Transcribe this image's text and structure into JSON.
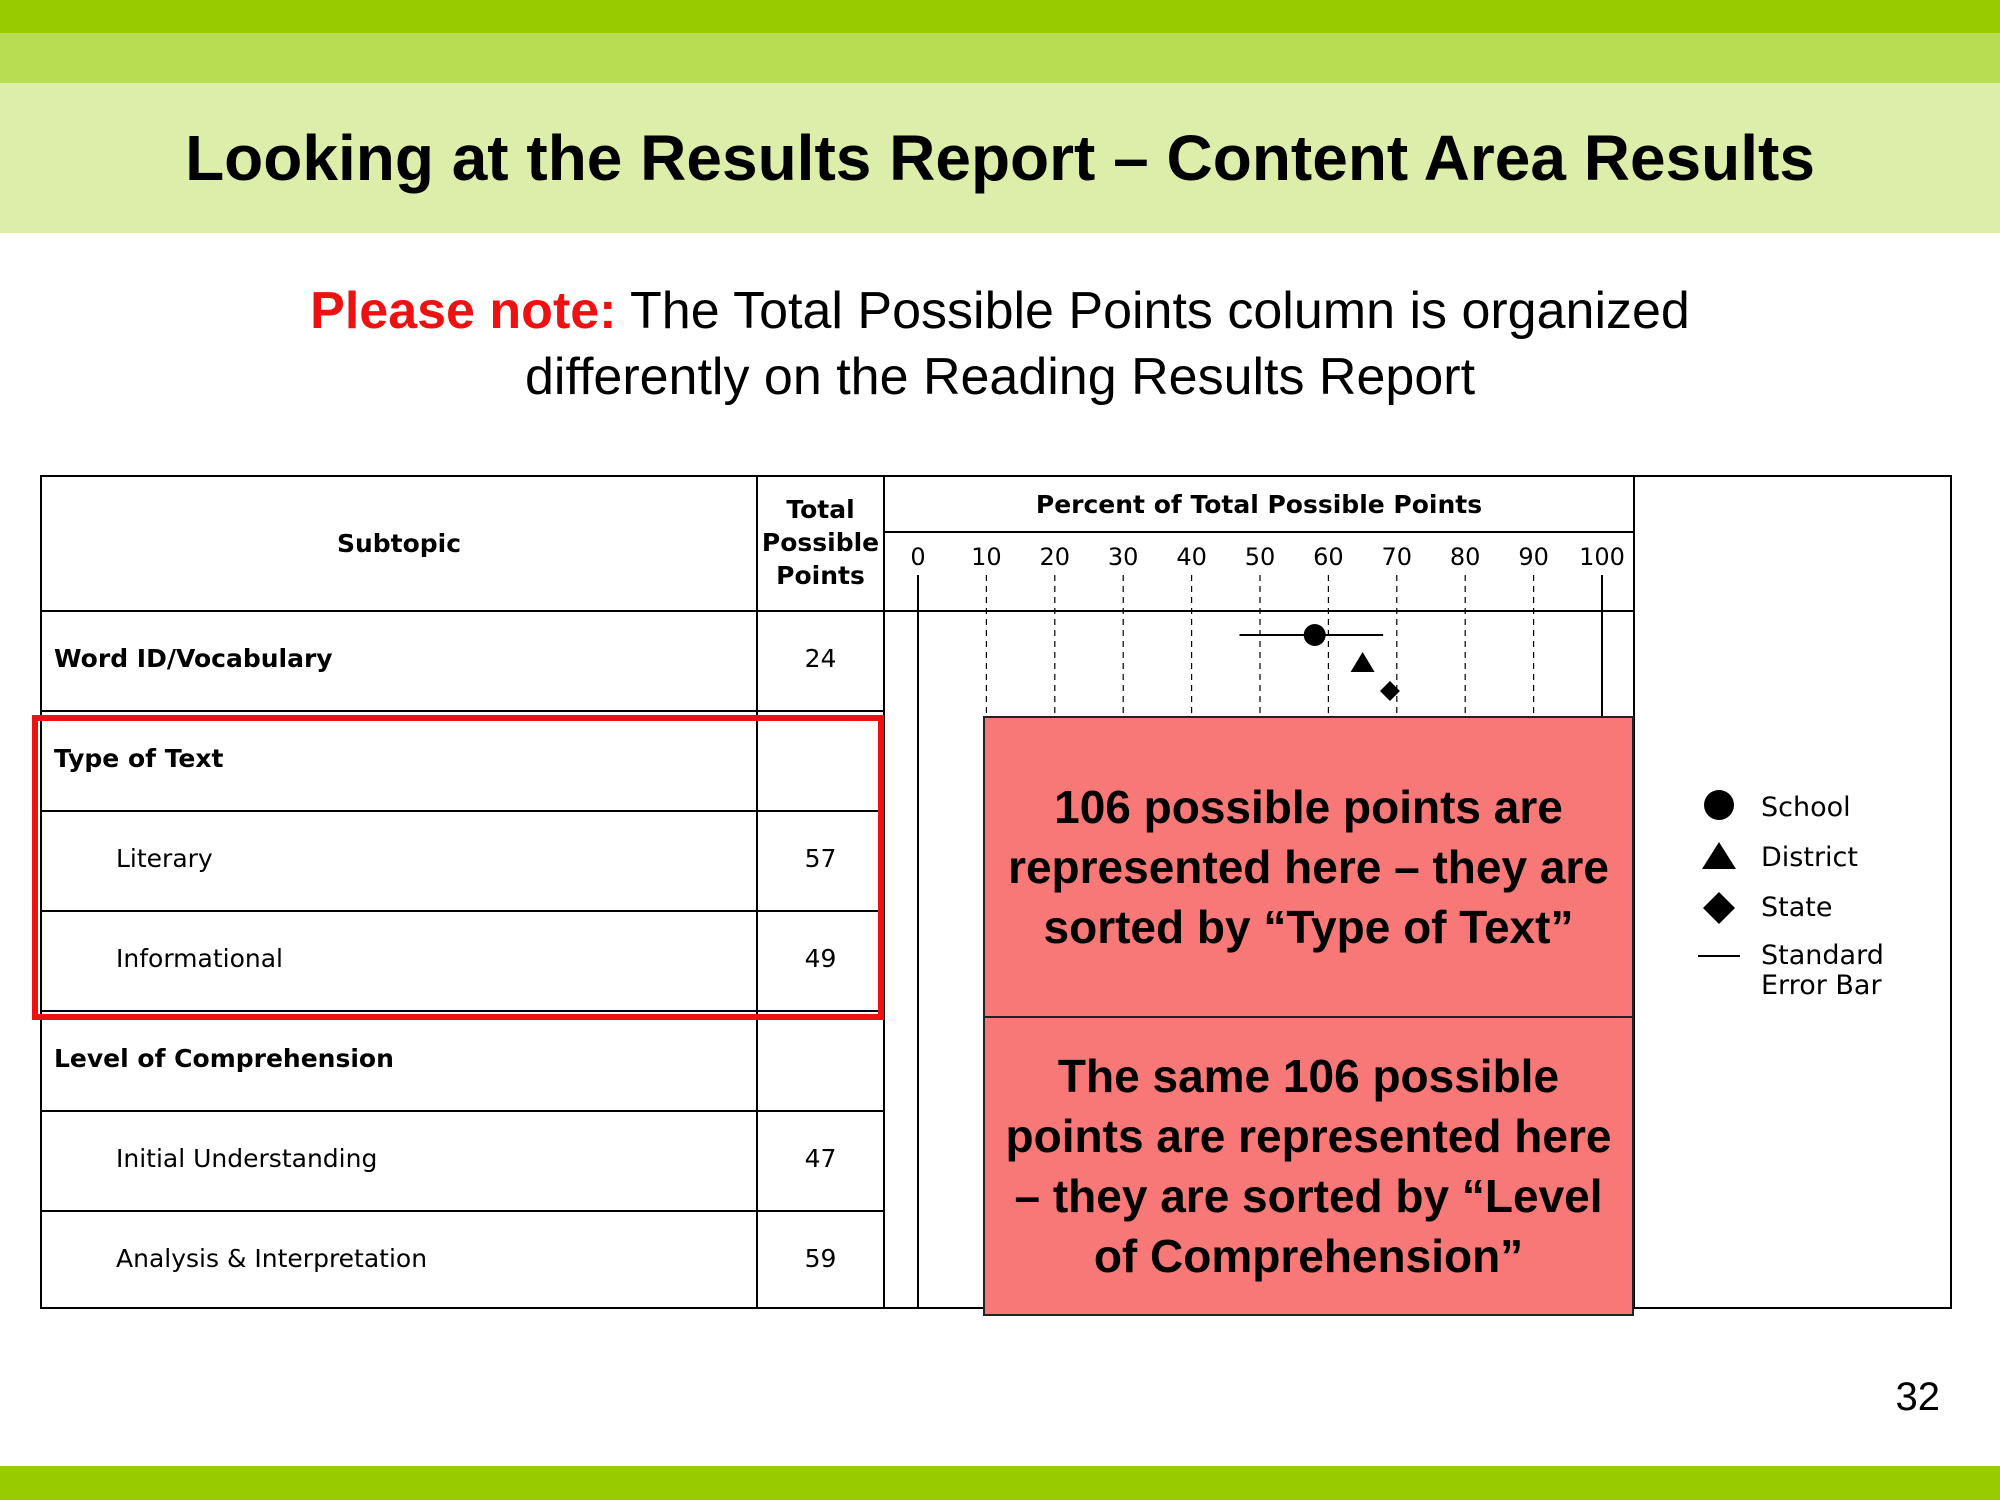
{
  "slide": {
    "title": "Looking at the Results Report – Content Area Results",
    "note_lead": "Please note:",
    "note_line1": " The Total Possible Points column is organized",
    "note_line2": "differently on the Reading Results Report",
    "page_number": "32"
  },
  "table": {
    "col_subtopic": "Subtopic",
    "col_points_1": "Total",
    "col_points_2": "Possible",
    "col_points_3": "Points",
    "col_percent": "Percent of Total Possible Points",
    "rows": [
      {
        "label": "Word ID/Vocabulary",
        "points": "24"
      },
      {
        "label": "Type of Text",
        "points": ""
      },
      {
        "label": "Literary",
        "points": "57"
      },
      {
        "label": "Informational",
        "points": "49"
      },
      {
        "label": "Level of Comprehension",
        "points": ""
      },
      {
        "label": "Initial Understanding",
        "points": "47"
      },
      {
        "label": "Analysis & Interpretation",
        "points": "59"
      }
    ]
  },
  "chart_data": {
    "type": "scatter",
    "x_ticks": [
      "0",
      "10",
      "20",
      "30",
      "40",
      "50",
      "60",
      "70",
      "80",
      "90",
      "100"
    ],
    "xlim": [
      0,
      100
    ],
    "grid": "dashed vertical",
    "points": [
      {
        "subtopic": "Word ID/Vocabulary",
        "group": "School",
        "marker": "circle",
        "value": 58,
        "error_bar": [
          47,
          68
        ]
      },
      {
        "subtopic": "Word ID/Vocabulary",
        "group": "District",
        "marker": "triangle",
        "value": 65
      },
      {
        "subtopic": "Word ID/Vocabulary",
        "group": "State",
        "marker": "diamond",
        "value": 69
      }
    ]
  },
  "legend": {
    "placement": "right",
    "school": "School",
    "district": "District",
    "state": "State",
    "error_1": "Standard",
    "error_2": "Error Bar"
  },
  "callouts": {
    "type_of_text": "106 possible points are represented here – they are sorted by “Type of Text”",
    "level_of_comprehension": "The same 106 possible points are represented here – they are sorted by “Level of Comprehension”"
  },
  "colors": {
    "band_dark": "#99cc00",
    "band_mid": "#b8dd52",
    "band_light": "#ddeeaa",
    "accent_red": "#ee1111",
    "callout_fill": "#f87777"
  }
}
